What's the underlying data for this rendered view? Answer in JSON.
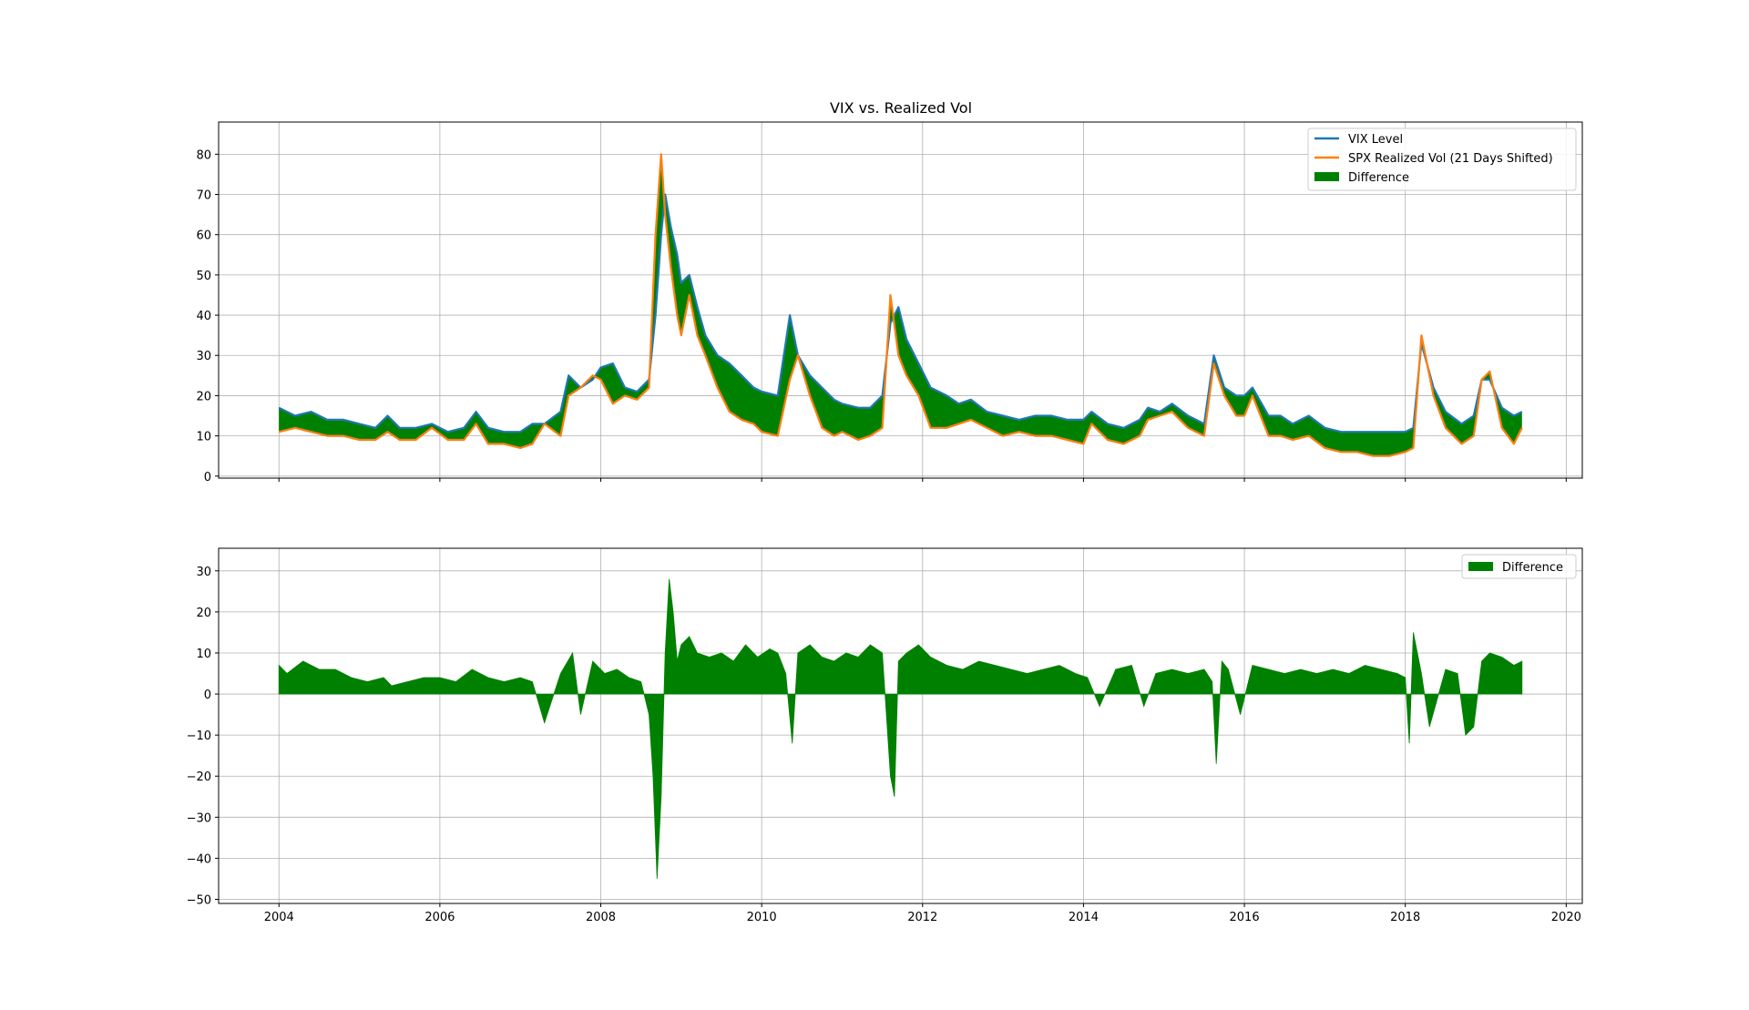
{
  "chart_data": [
    {
      "type": "line",
      "title": "VIX vs. Realized Vol",
      "xlabel": "",
      "ylabel": "",
      "xlim": [
        2003.25,
        2020.2
      ],
      "ylim": [
        -0.5,
        88
      ],
      "xticks": [
        2004,
        2006,
        2008,
        2010,
        2012,
        2014,
        2016,
        2018,
        2020
      ],
      "xtick_labels_visible": false,
      "yticks": [
        0,
        10,
        20,
        30,
        40,
        50,
        60,
        70,
        80
      ],
      "grid": true,
      "legend_position": "top-right",
      "legend": [
        "VIX Level",
        "SPX Realized Vol (21 Days Shifted)",
        "Difference"
      ],
      "colors": {
        "vix": "#1f77b4",
        "realized": "#ff7f0e",
        "difference": "#008000"
      },
      "x": [
        2004.0,
        2004.2,
        2004.4,
        2004.6,
        2004.8,
        2005.0,
        2005.2,
        2005.35,
        2005.5,
        2005.7,
        2005.9,
        2006.1,
        2006.3,
        2006.45,
        2006.6,
        2006.8,
        2007.0,
        2007.15,
        2007.3,
        2007.5,
        2007.6,
        2007.75,
        2007.9,
        2008.0,
        2008.15,
        2008.3,
        2008.45,
        2008.6,
        2008.68,
        2008.75,
        2008.8,
        2008.87,
        2008.95,
        2009.0,
        2009.1,
        2009.2,
        2009.3,
        2009.45,
        2009.6,
        2009.75,
        2009.9,
        2010.0,
        2010.2,
        2010.35,
        2010.45,
        2010.6,
        2010.75,
        2010.9,
        2011.0,
        2011.2,
        2011.35,
        2011.5,
        2011.6,
        2011.7,
        2011.8,
        2011.95,
        2012.1,
        2012.3,
        2012.45,
        2012.6,
        2012.8,
        2013.0,
        2013.2,
        2013.4,
        2013.6,
        2013.8,
        2014.0,
        2014.1,
        2014.3,
        2014.5,
        2014.7,
        2014.8,
        2014.95,
        2015.1,
        2015.3,
        2015.5,
        2015.62,
        2015.75,
        2015.9,
        2016.0,
        2016.1,
        2016.3,
        2016.45,
        2016.6,
        2016.8,
        2017.0,
        2017.2,
        2017.4,
        2017.6,
        2017.8,
        2018.0,
        2018.1,
        2018.2,
        2018.35,
        2018.5,
        2018.7,
        2018.85,
        2018.95,
        2019.05,
        2019.2,
        2019.35,
        2019.45
      ],
      "series": [
        {
          "name": "VIX Level",
          "values": [
            17,
            15,
            16,
            14,
            14,
            13,
            12,
            15,
            12,
            12,
            13,
            11,
            12,
            16,
            12,
            11,
            11,
            13,
            13,
            16,
            25,
            22,
            24,
            27,
            28,
            22,
            21,
            24,
            40,
            60,
            70,
            62,
            55,
            48,
            50,
            42,
            35,
            30,
            28,
            25,
            22,
            21,
            20,
            40,
            30,
            25,
            22,
            19,
            18,
            17,
            17,
            20,
            38,
            42,
            34,
            28,
            22,
            20,
            18,
            19,
            16,
            15,
            14,
            15,
            15,
            14,
            14,
            16,
            13,
            12,
            14,
            17,
            16,
            18,
            15,
            13,
            30,
            22,
            20,
            20,
            22,
            15,
            15,
            13,
            15,
            12,
            11,
            11,
            11,
            11,
            11,
            12,
            33,
            22,
            16,
            13,
            15,
            24,
            24,
            17,
            15,
            16
          ]
        },
        {
          "name": "SPX Realized Vol (21 Days Shifted)",
          "values": [
            11,
            12,
            11,
            10,
            10,
            9,
            9,
            11,
            9,
            9,
            12,
            9,
            9,
            13,
            8,
            8,
            7,
            8,
            13,
            10,
            20,
            22,
            25,
            24,
            18,
            20,
            19,
            22,
            60,
            80,
            65,
            52,
            40,
            35,
            45,
            35,
            30,
            22,
            16,
            14,
            13,
            11,
            10,
            24,
            30,
            20,
            12,
            10,
            11,
            9,
            10,
            12,
            45,
            30,
            25,
            20,
            12,
            12,
            13,
            14,
            12,
            10,
            11,
            10,
            10,
            9,
            8,
            13,
            9,
            8,
            10,
            14,
            15,
            16,
            12,
            10,
            28,
            20,
            15,
            15,
            20,
            10,
            10,
            9,
            10,
            7,
            6,
            6,
            5,
            5,
            6,
            7,
            35,
            20,
            12,
            8,
            10,
            24,
            26,
            12,
            8,
            12
          ]
        }
      ]
    },
    {
      "type": "area",
      "title": "",
      "xlabel": "",
      "ylabel": "",
      "xlim": [
        2003.25,
        2020.2
      ],
      "ylim": [
        -51,
        35.5
      ],
      "xticks": [
        2004,
        2006,
        2008,
        2010,
        2012,
        2014,
        2016,
        2018,
        2020
      ],
      "xtick_labels": [
        "2004",
        "2006",
        "2008",
        "2010",
        "2012",
        "2014",
        "2016",
        "2018",
        "2020"
      ],
      "yticks": [
        -50,
        -40,
        -30,
        -20,
        -10,
        0,
        10,
        20,
        30
      ],
      "ytick_labels": [
        "−50",
        "−40",
        "−30",
        "−20",
        "−10",
        "0",
        "10",
        "20",
        "30"
      ],
      "grid": true,
      "legend_position": "top-right",
      "legend": [
        "Difference"
      ],
      "colors": {
        "difference": "#008000"
      },
      "x": [
        2004.0,
        2004.1,
        2004.3,
        2004.5,
        2004.7,
        2004.9,
        2005.1,
        2005.3,
        2005.4,
        2005.6,
        2005.8,
        2006.0,
        2006.2,
        2006.4,
        2006.6,
        2006.8,
        2007.0,
        2007.15,
        2007.3,
        2007.5,
        2007.65,
        2007.75,
        2007.9,
        2008.05,
        2008.2,
        2008.35,
        2008.5,
        2008.6,
        2008.65,
        2008.7,
        2008.75,
        2008.8,
        2008.85,
        2008.9,
        2008.95,
        2009.0,
        2009.1,
        2009.2,
        2009.35,
        2009.5,
        2009.65,
        2009.8,
        2009.95,
        2010.1,
        2010.2,
        2010.3,
        2010.38,
        2010.45,
        2010.6,
        2010.75,
        2010.9,
        2011.05,
        2011.2,
        2011.35,
        2011.5,
        2011.6,
        2011.65,
        2011.7,
        2011.8,
        2011.95,
        2012.1,
        2012.3,
        2012.5,
        2012.7,
        2012.9,
        2013.1,
        2013.3,
        2013.5,
        2013.7,
        2013.9,
        2014.05,
        2014.2,
        2014.4,
        2014.6,
        2014.75,
        2014.9,
        2015.1,
        2015.3,
        2015.5,
        2015.6,
        2015.65,
        2015.72,
        2015.8,
        2015.95,
        2016.1,
        2016.3,
        2016.5,
        2016.7,
        2016.9,
        2017.1,
        2017.3,
        2017.5,
        2017.7,
        2017.9,
        2018.0,
        2018.05,
        2018.1,
        2018.2,
        2018.3,
        2018.5,
        2018.65,
        2018.75,
        2018.85,
        2018.95,
        2019.05,
        2019.2,
        2019.35,
        2019.45
      ],
      "series": [
        {
          "name": "Difference",
          "values": [
            7,
            5,
            8,
            6,
            6,
            4,
            3,
            4,
            2,
            3,
            4,
            4,
            3,
            6,
            4,
            3,
            4,
            3,
            -7,
            5,
            10,
            -5,
            8,
            5,
            6,
            4,
            3,
            -5,
            -20,
            -45,
            -25,
            10,
            28,
            20,
            8,
            12,
            14,
            10,
            9,
            10,
            8,
            12,
            9,
            11,
            10,
            5,
            -12,
            10,
            12,
            9,
            8,
            10,
            9,
            12,
            10,
            -20,
            -25,
            8,
            10,
            12,
            9,
            7,
            6,
            8,
            7,
            6,
            5,
            6,
            7,
            5,
            4,
            -3,
            6,
            7,
            -3,
            5,
            6,
            5,
            6,
            3,
            -17,
            8,
            6,
            -5,
            7,
            6,
            5,
            6,
            5,
            6,
            5,
            7,
            6,
            5,
            4,
            -12,
            15,
            5,
            -8,
            6,
            5,
            -10,
            -8,
            8,
            10,
            9,
            7,
            8
          ]
        }
      ]
    }
  ]
}
